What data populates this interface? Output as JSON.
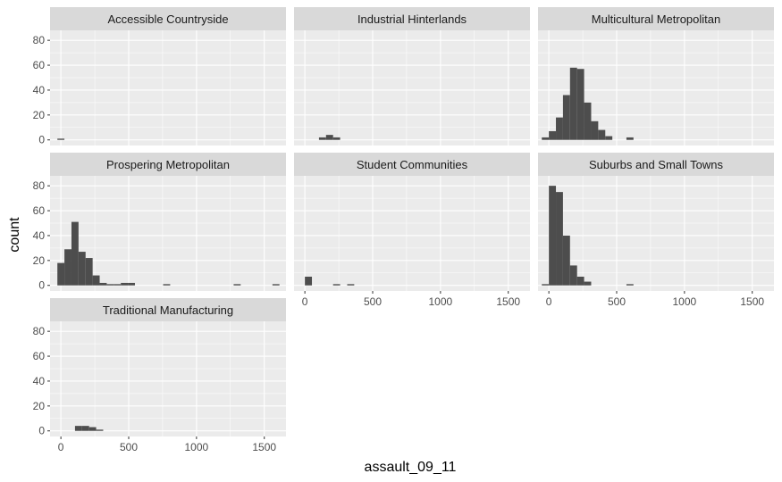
{
  "chart_data": {
    "type": "histogram",
    "layout": "facet_wrap",
    "xlabel": "assault_09_11",
    "ylabel": "count",
    "xlim": [
      -80,
      1660
    ],
    "ylim": [
      -4.5,
      88
    ],
    "x_ticks": [
      0,
      500,
      1000,
      1500
    ],
    "y_ticks": [
      0,
      20,
      40,
      60,
      80
    ],
    "bin_width": 52,
    "colors": {
      "panel_bg": "#ebebeb",
      "grid_major": "#ffffff",
      "strip_bg": "#d9d9d9",
      "bar_fill": "#4d4d4d",
      "tick_mark": "#333333"
    },
    "facets": [
      {
        "title": "Accessible Countryside",
        "bins": [
          [
            0,
            1
          ]
        ]
      },
      {
        "title": "Industrial Hinterlands",
        "bins": [
          [
            130,
            2
          ],
          [
            182,
            4
          ],
          [
            234,
            2
          ]
        ]
      },
      {
        "title": "Multicultural Metropolitan",
        "bins": [
          [
            -26,
            2
          ],
          [
            26,
            7
          ],
          [
            78,
            18
          ],
          [
            130,
            36
          ],
          [
            182,
            58
          ],
          [
            234,
            57
          ],
          [
            286,
            30
          ],
          [
            338,
            15
          ],
          [
            390,
            8
          ],
          [
            442,
            3
          ],
          [
            598,
            2
          ]
        ]
      },
      {
        "title": "Prospering Metropolitan",
        "bins": [
          [
            0,
            18
          ],
          [
            52,
            29
          ],
          [
            104,
            51
          ],
          [
            156,
            27
          ],
          [
            208,
            22
          ],
          [
            260,
            8
          ],
          [
            312,
            2
          ],
          [
            364,
            1
          ],
          [
            416,
            1
          ],
          [
            468,
            2
          ],
          [
            520,
            2
          ],
          [
            780,
            1
          ],
          [
            1300,
            1
          ],
          [
            1586,
            1
          ]
        ]
      },
      {
        "title": "Student Communities",
        "bins": [
          [
            26,
            7
          ],
          [
            234,
            1
          ],
          [
            338,
            1
          ]
        ]
      },
      {
        "title": "Suburbs and Small Towns",
        "bins": [
          [
            -26,
            1
          ],
          [
            26,
            80
          ],
          [
            78,
            75
          ],
          [
            130,
            40
          ],
          [
            182,
            16
          ],
          [
            234,
            7
          ],
          [
            286,
            3
          ],
          [
            598,
            1
          ]
        ]
      },
      {
        "title": "Traditional Manufacturing",
        "bins": [
          [
            130,
            4
          ],
          [
            182,
            4
          ],
          [
            234,
            3
          ],
          [
            286,
            1
          ]
        ]
      }
    ]
  }
}
